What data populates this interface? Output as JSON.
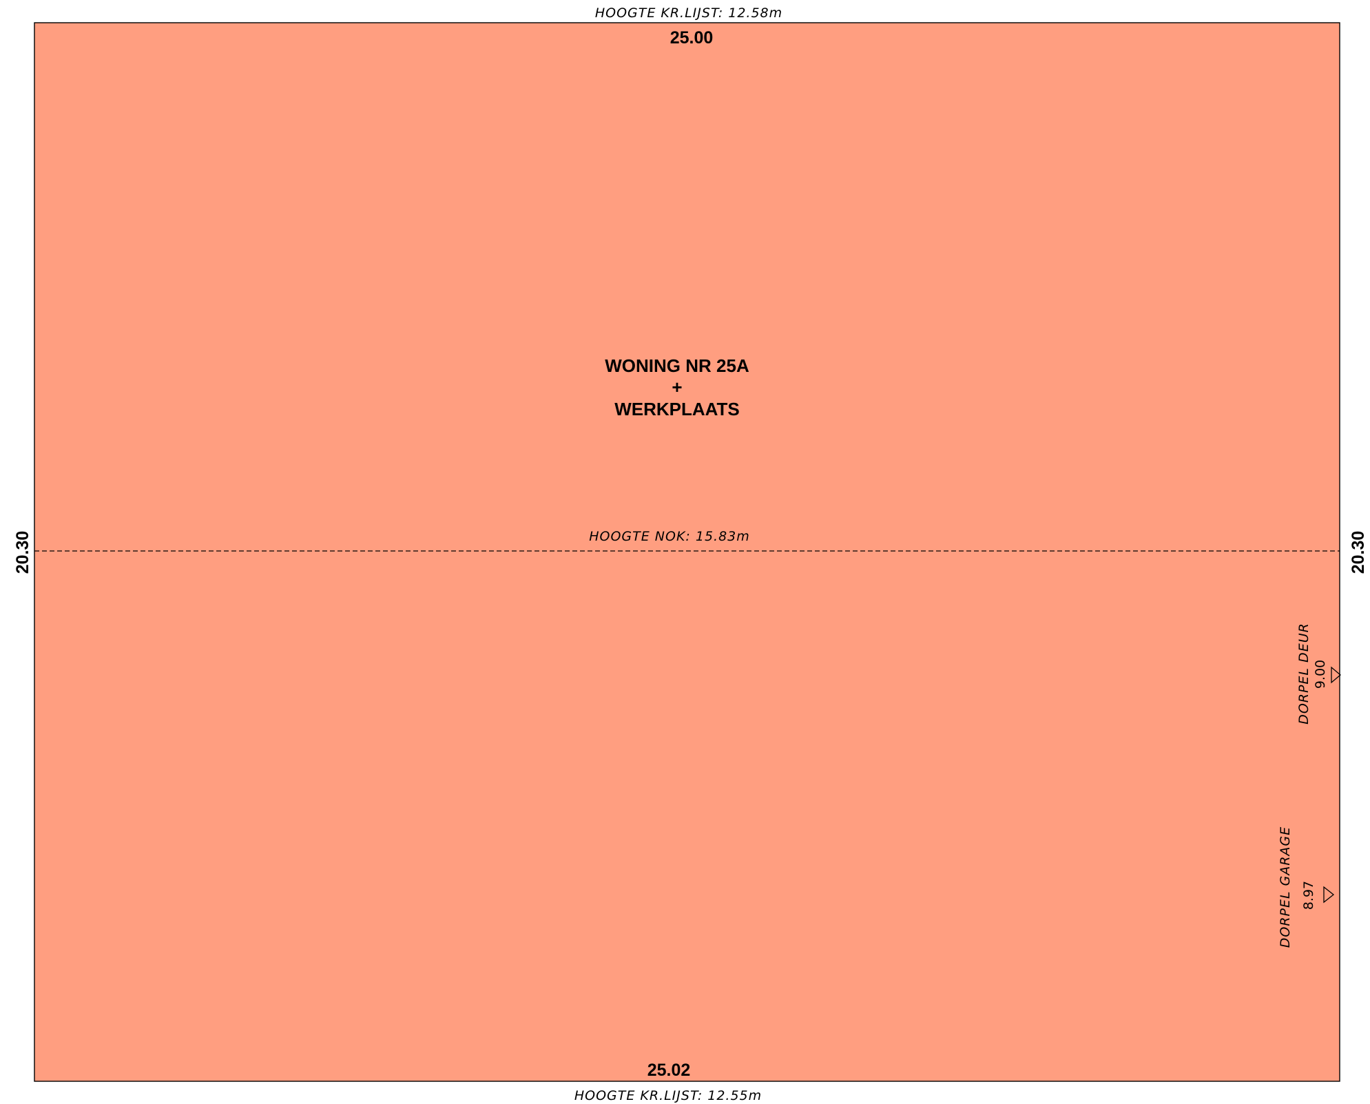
{
  "colors": {
    "building_fill": "#FF9E80",
    "line": "#000000"
  },
  "plan": {
    "building_label": [
      "WONING NR 25A",
      "+",
      "WERKPLAATS"
    ],
    "dim_top": "25.00",
    "dim_bottom": "25.02",
    "dim_left": "20.30",
    "dim_right": "20.30",
    "cornice_top": "HOOGTE KR.LIJST: 12.58m",
    "cornice_bottom": "HOOGTE KR.LIJST: 12.55m",
    "ridge": "HOOGTE NOK: 15.83m",
    "threshold_door": {
      "label": "DORPEL DEUR",
      "level": "9.00",
      "icon": "triangle-level-marker-icon"
    },
    "threshold_garage": {
      "label": "DORPEL GARAGE",
      "level": "8.97",
      "icon": "triangle-level-marker-icon"
    }
  }
}
